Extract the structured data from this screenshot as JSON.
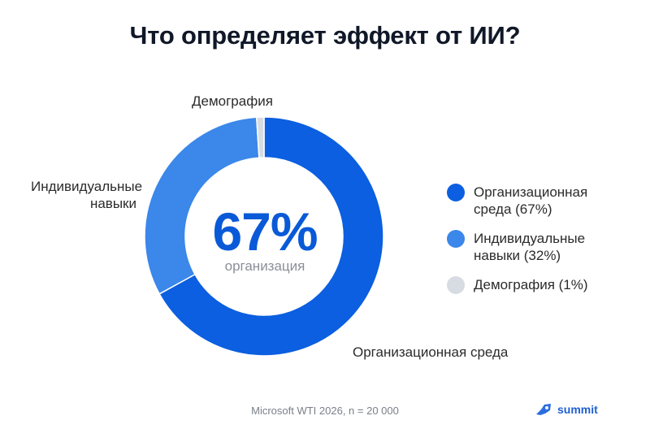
{
  "title": "Что определяет эффект от ИИ?",
  "chart_data": {
    "type": "pie",
    "donut": true,
    "categories": [
      "Организационная среда",
      "Индивидуальные навыки",
      "Демография"
    ],
    "values": [
      67,
      32,
      1
    ],
    "unit": "%",
    "colors": [
      "#0b5fe0",
      "#3b87ea",
      "#d7dce2"
    ],
    "center_value": "67%",
    "center_label": "организация",
    "slice_labels": {
      "org": "Организационная среда",
      "skills_line1": "Индивидуальные",
      "skills_line2": "навыки",
      "demo": "Демография"
    },
    "legend": [
      {
        "line1": "Организационная",
        "line2": "среда (67%)",
        "color": "#0b5fe0"
      },
      {
        "line1": "Индивидуальные",
        "line2": "навыки (32%)",
        "color": "#3b87ea"
      },
      {
        "line1": "Демография (1%)",
        "line2": "",
        "color": "#d7dce2"
      }
    ],
    "legend_position": "right"
  },
  "source": "Microsoft WTI 2026, n = 20 000",
  "brand": {
    "text": "summit",
    "icon": "rocket-icon"
  }
}
